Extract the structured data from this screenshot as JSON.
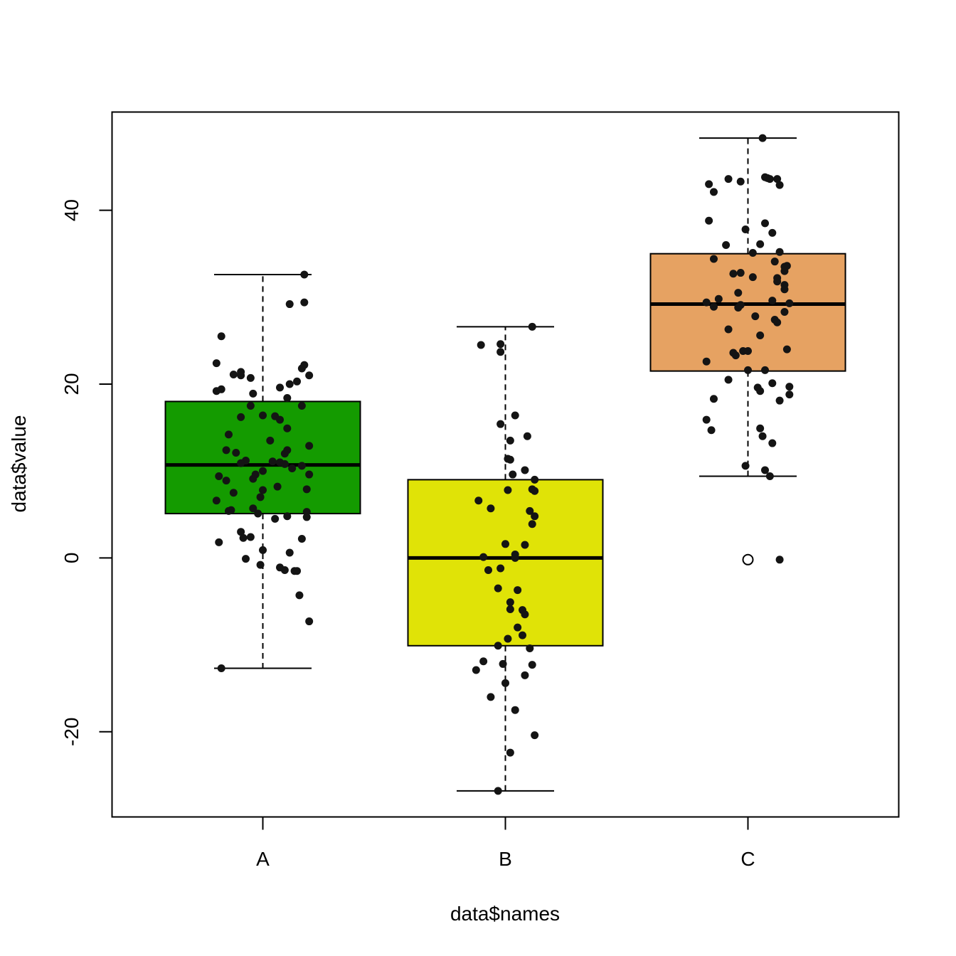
{
  "chart_data": {
    "type": "boxplot",
    "title": "",
    "xlabel": "data$names",
    "ylabel": "data$value",
    "ylim": [
      -29.8,
      51.3
    ],
    "yticks": [
      -20,
      0,
      20,
      40
    ],
    "categories": [
      "A",
      "B",
      "C"
    ],
    "colors": {
      "A": "#149b00",
      "B": "#e0e307",
      "C": "#e6a262",
      "points": "#141414",
      "frame": "#000000"
    },
    "boxes": [
      {
        "name": "A",
        "whisker_low": -12.7,
        "q1": 5.1,
        "median": 10.7,
        "q3": 18.0,
        "whisker_high": 32.6,
        "outliers": [],
        "points": [
          [
            -0.17,
            25.5
          ],
          [
            -0.19,
            22.4
          ],
          [
            -0.19,
            19.2
          ],
          [
            -0.17,
            19.4
          ],
          [
            -0.12,
            21.1
          ],
          [
            -0.09,
            21.0
          ],
          [
            -0.09,
            21.4
          ],
          [
            -0.05,
            20.7
          ],
          [
            -0.04,
            18.9
          ],
          [
            -0.05,
            17.5
          ],
          [
            -0.09,
            16.2
          ],
          [
            -0.14,
            14.2
          ],
          [
            -0.15,
            12.4
          ],
          [
            -0.11,
            12.1
          ],
          [
            -0.07,
            11.2
          ],
          [
            -0.09,
            10.9
          ],
          [
            -0.18,
            9.4
          ],
          [
            -0.15,
            8.9
          ],
          [
            -0.12,
            7.5
          ],
          [
            -0.19,
            6.6
          ],
          [
            -0.13,
            5.5
          ],
          [
            -0.14,
            5.4
          ],
          [
            -0.04,
            5.7
          ],
          [
            -0.02,
            5.1
          ],
          [
            -0.04,
            9.1
          ],
          [
            -0.03,
            9.6
          ],
          [
            0.0,
            10.0
          ],
          [
            0.0,
            7.8
          ],
          [
            -0.01,
            7.0
          ],
          [
            -0.09,
            3.0
          ],
          [
            -0.08,
            2.3
          ],
          [
            -0.05,
            2.4
          ],
          [
            -0.18,
            1.8
          ],
          [
            0.0,
            0.9
          ],
          [
            -0.07,
            -0.1
          ],
          [
            -0.01,
            -0.8
          ],
          [
            -0.17,
            -12.7
          ],
          [
            0.0,
            16.4
          ],
          [
            0.05,
            16.3
          ],
          [
            0.07,
            15.9
          ],
          [
            0.1,
            14.9
          ],
          [
            0.03,
            13.5
          ],
          [
            0.1,
            12.4
          ],
          [
            0.09,
            12.0
          ],
          [
            0.04,
            11.1
          ],
          [
            0.07,
            11.0
          ],
          [
            0.09,
            10.8
          ],
          [
            0.12,
            10.3
          ],
          [
            0.06,
            8.2
          ],
          [
            0.05,
            4.5
          ],
          [
            0.1,
            4.8
          ],
          [
            0.07,
            -1.1
          ],
          [
            0.09,
            -1.4
          ],
          [
            0.13,
            -1.5
          ],
          [
            0.14,
            -1.5
          ],
          [
            0.15,
            -4.3
          ],
          [
            0.11,
            0.6
          ],
          [
            0.16,
            2.2
          ],
          [
            0.11,
            20.0
          ],
          [
            0.07,
            19.6
          ],
          [
            0.1,
            18.4
          ],
          [
            0.14,
            20.3
          ],
          [
            0.16,
            17.5
          ],
          [
            0.16,
            21.8
          ],
          [
            0.17,
            22.2
          ],
          [
            0.19,
            21.0
          ],
          [
            0.17,
            29.4
          ],
          [
            0.11,
            29.2
          ],
          [
            0.17,
            32.6
          ],
          [
            0.16,
            10.6
          ],
          [
            0.19,
            12.9
          ],
          [
            0.19,
            9.6
          ],
          [
            0.18,
            7.9
          ],
          [
            0.18,
            5.3
          ],
          [
            0.18,
            4.7
          ],
          [
            0.19,
            -7.3
          ]
        ]
      },
      {
        "name": "B",
        "whisker_low": -26.8,
        "q1": -10.1,
        "median": 0.0,
        "q3": 9.0,
        "whisker_high": 26.6,
        "outliers": [],
        "points": [
          [
            0.11,
            26.6
          ],
          [
            -0.1,
            24.5
          ],
          [
            -0.02,
            24.6
          ],
          [
            -0.02,
            23.7
          ],
          [
            0.04,
            16.4
          ],
          [
            -0.02,
            15.4
          ],
          [
            0.09,
            14.0
          ],
          [
            0.02,
            13.5
          ],
          [
            0.01,
            11.4
          ],
          [
            0.02,
            11.3
          ],
          [
            0.08,
            10.1
          ],
          [
            0.03,
            9.6
          ],
          [
            0.12,
            9.0
          ],
          [
            0.01,
            7.8
          ],
          [
            0.11,
            7.9
          ],
          [
            0.12,
            7.7
          ],
          [
            -0.11,
            6.6
          ],
          [
            -0.06,
            5.7
          ],
          [
            0.1,
            5.4
          ],
          [
            0.12,
            4.8
          ],
          [
            0.11,
            3.9
          ],
          [
            0.0,
            1.6
          ],
          [
            0.08,
            1.5
          ],
          [
            0.04,
            0.4
          ],
          [
            0.04,
            0.0
          ],
          [
            -0.09,
            0.1
          ],
          [
            -0.07,
            -1.4
          ],
          [
            -0.02,
            -1.2
          ],
          [
            -0.03,
            -3.5
          ],
          [
            0.05,
            -3.7
          ],
          [
            0.02,
            -5.1
          ],
          [
            0.02,
            -5.9
          ],
          [
            0.07,
            -6.0
          ],
          [
            0.08,
            -6.5
          ],
          [
            0.05,
            -8.0
          ],
          [
            0.07,
            -8.9
          ],
          [
            0.01,
            -9.3
          ],
          [
            -0.03,
            -10.1
          ],
          [
            0.1,
            -10.4
          ],
          [
            -0.09,
            -11.9
          ],
          [
            -0.12,
            -12.9
          ],
          [
            -0.01,
            -12.2
          ],
          [
            0.11,
            -12.3
          ],
          [
            0.08,
            -13.5
          ],
          [
            0.0,
            -14.4
          ],
          [
            -0.06,
            -16.0
          ],
          [
            0.04,
            -17.5
          ],
          [
            0.12,
            -20.4
          ],
          [
            0.02,
            -22.4
          ],
          [
            -0.03,
            -26.8
          ]
        ]
      },
      {
        "name": "C",
        "whisker_low": 9.4,
        "q1": 21.5,
        "median": 29.2,
        "q3": 35.0,
        "whisker_high": 48.3,
        "outliers": [
          -0.2
        ],
        "points": [
          [
            0.06,
            48.3
          ],
          [
            -0.16,
            43.0
          ],
          [
            -0.14,
            42.1
          ],
          [
            -0.08,
            43.6
          ],
          [
            -0.03,
            43.3
          ],
          [
            0.07,
            43.8
          ],
          [
            0.08,
            43.7
          ],
          [
            0.09,
            43.6
          ],
          [
            0.12,
            43.6
          ],
          [
            0.13,
            42.9
          ],
          [
            -0.16,
            38.8
          ],
          [
            -0.01,
            37.8
          ],
          [
            0.07,
            38.5
          ],
          [
            0.1,
            37.4
          ],
          [
            -0.09,
            36.0
          ],
          [
            0.05,
            36.1
          ],
          [
            0.02,
            35.1
          ],
          [
            0.13,
            35.2
          ],
          [
            -0.14,
            34.4
          ],
          [
            0.11,
            34.1
          ],
          [
            0.15,
            33.5
          ],
          [
            0.16,
            33.6
          ],
          [
            0.15,
            33.0
          ],
          [
            -0.06,
            32.7
          ],
          [
            -0.03,
            32.8
          ],
          [
            0.02,
            32.3
          ],
          [
            0.12,
            32.2
          ],
          [
            0.12,
            31.8
          ],
          [
            0.15,
            31.4
          ],
          [
            0.15,
            30.9
          ],
          [
            -0.04,
            30.5
          ],
          [
            -0.12,
            29.8
          ],
          [
            -0.17,
            29.4
          ],
          [
            -0.14,
            28.9
          ],
          [
            -0.04,
            28.8
          ],
          [
            -0.03,
            29.1
          ],
          [
            0.1,
            29.6
          ],
          [
            0.17,
            29.3
          ],
          [
            0.15,
            28.3
          ],
          [
            0.03,
            27.8
          ],
          [
            0.12,
            27.1
          ],
          [
            0.11,
            27.4
          ],
          [
            -0.08,
            26.3
          ],
          [
            0.05,
            25.6
          ],
          [
            -0.06,
            23.6
          ],
          [
            -0.05,
            23.3
          ],
          [
            -0.02,
            23.8
          ],
          [
            0.0,
            23.8
          ],
          [
            0.16,
            24.0
          ],
          [
            -0.17,
            22.6
          ],
          [
            0.0,
            21.6
          ],
          [
            0.07,
            21.6
          ],
          [
            -0.08,
            20.5
          ],
          [
            0.1,
            20.1
          ],
          [
            0.04,
            19.6
          ],
          [
            0.05,
            19.2
          ],
          [
            0.17,
            19.7
          ],
          [
            0.17,
            18.8
          ],
          [
            0.13,
            18.1
          ],
          [
            -0.14,
            18.3
          ],
          [
            -0.17,
            15.9
          ],
          [
            -0.15,
            14.7
          ],
          [
            0.05,
            14.9
          ],
          [
            0.06,
            14.0
          ],
          [
            0.1,
            13.2
          ],
          [
            -0.01,
            10.6
          ],
          [
            0.07,
            10.1
          ],
          [
            0.09,
            9.4
          ],
          [
            0.13,
            -0.2
          ]
        ]
      }
    ]
  }
}
